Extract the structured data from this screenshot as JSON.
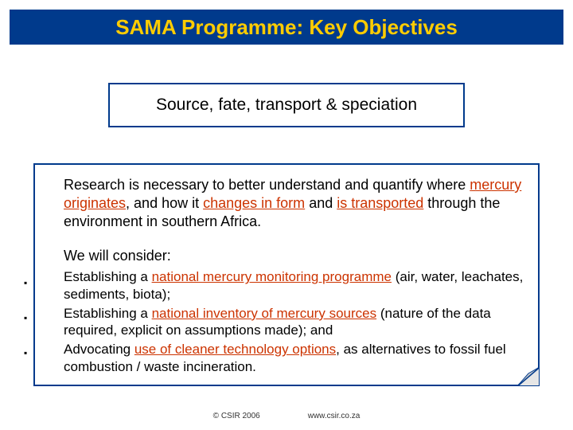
{
  "colors": {
    "title_bar_bg": "#003a8c",
    "title_text": "#ffcc00",
    "subtitle_border": "#003a8c",
    "subtitle_bg": "#ffffff",
    "content_border": "#003a8c",
    "content_bg": "#ffffff",
    "underline": "#cc3300",
    "dog_ear_fill": "#e6e6e6",
    "dog_ear_stroke": "#003a8c"
  },
  "fonts": {
    "title_pt": 26,
    "subtitle_pt": 21,
    "body_pt": 18,
    "list_pt": 17,
    "footer_pt": 10
  },
  "title": "SAMA Programme: Key Objectives",
  "subtitle": "Source, fate, transport & speciation",
  "paragraph": {
    "pre1": "Research is necessary to better understand and quantify where ",
    "u1": "mercury originates",
    "mid1": ", and how it ",
    "u2": "changes in form",
    "mid2": " and ",
    "u3": "is transported",
    "post": " through the environment in southern Africa."
  },
  "lead": "We will consider:",
  "bulletGlyph": "▪",
  "bulletOffsets": [
    0,
    44,
    88
  ],
  "items": [
    {
      "pre": "Establishing a ",
      "u": "national mercury monitoring programme",
      "post": " (air, water, leachates, sediments, biota);"
    },
    {
      "pre": "Establishing a ",
      "u": "national inventory of mercury sources",
      "post": " (nature of the data required, explicit on assumptions made); and"
    },
    {
      "pre": "Advocating ",
      "u": "use of cleaner technology options",
      "post": ", as alternatives  to fossil fuel combustion / waste incineration."
    }
  ],
  "footer": {
    "copyright": "© CSIR  2006",
    "url": "www.csir.co.za"
  }
}
